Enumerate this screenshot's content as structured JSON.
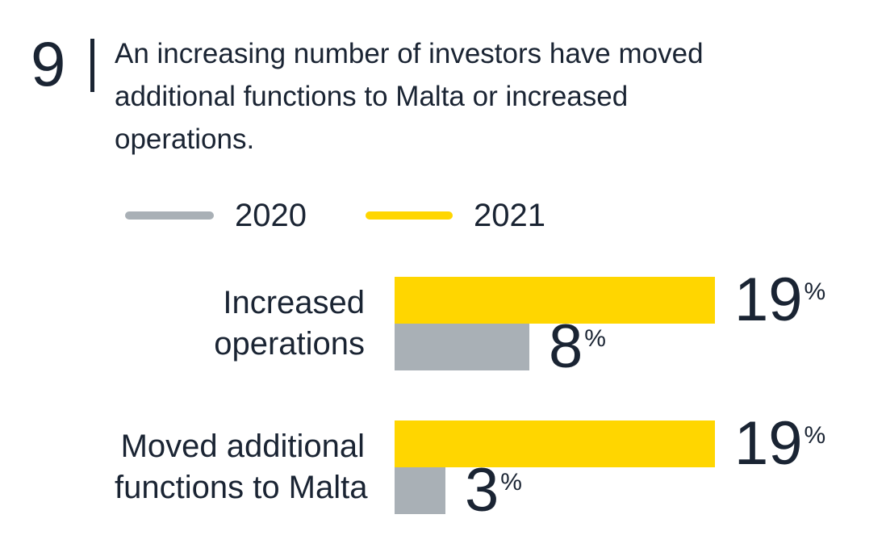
{
  "header": {
    "figure_number": "9",
    "title": "An increasing number of investors have moved additional functions to Malta or increased operations.",
    "title_lines": [
      "An increasing number of investors have moved",
      "additional functions to Malta or increased",
      "operations."
    ]
  },
  "legend": {
    "items": [
      {
        "label": "2020",
        "color": "#A9B0B6"
      },
      {
        "label": "2021",
        "color": "#FFD600"
      }
    ]
  },
  "chart_data": {
    "type": "bar",
    "orientation": "horizontal",
    "title": "An increasing number of investors have moved additional functions to Malta or increased operations.",
    "categories": [
      "Increased operations",
      "Moved additional functions to Malta"
    ],
    "categories_lines": [
      [
        "Increased",
        "operations"
      ],
      [
        "Moved additional",
        "functions to Malta"
      ]
    ],
    "series": [
      {
        "name": "2020",
        "color": "#A9B0B6",
        "values": [
          8,
          3
        ]
      },
      {
        "name": "2021",
        "color": "#FFD600",
        "values": [
          19,
          19
        ]
      }
    ],
    "unit": "%",
    "xlim": [
      0,
      19
    ],
    "value_labels": true,
    "grid": false,
    "legend_position": "top"
  },
  "colors": {
    "text": "#1A2433",
    "background": "#FFFFFF",
    "series_2020": "#A9B0B6",
    "series_2021": "#FFD600"
  }
}
